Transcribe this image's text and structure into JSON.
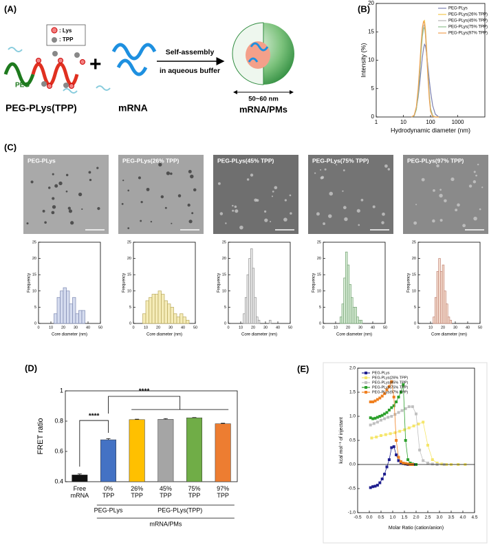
{
  "panels": [
    "(A)",
    "(B)",
    "(C)",
    "(D)",
    "(E)"
  ],
  "scheme": {
    "lys": ": Lys",
    "tpp": ": TPP",
    "peg": "PEG",
    "polymer": "PEG-PLys(TPP)",
    "plus": "+",
    "mrna": "mRNA",
    "step1": "Self-assembly",
    "step2": "in aqueous buffer",
    "size": "50~60 nm",
    "product": "mRNA/PMs"
  },
  "tem_images": [
    {
      "label": "PEG-PLys"
    },
    {
      "label": "PEG-PLys(26% TPP)"
    },
    {
      "label": "PEG-PLys(45% TPP)"
    },
    {
      "label": "PEG-PLys(75% TPP)"
    },
    {
      "label": "PEG-PLys(97% TPP)"
    }
  ],
  "chart_data": [
    {
      "type": "line",
      "xscale": "log",
      "xlabel": "Hydrodynamic diameter (nm)",
      "ylabel": "Intensity (%)",
      "xlim": [
        1,
        10000
      ],
      "xticks": [
        1,
        10,
        100,
        1000
      ],
      "ylim": [
        0,
        20
      ],
      "yticks": [
        0,
        5,
        10,
        15,
        20
      ],
      "legend": "upper right",
      "grid": false,
      "x": [
        20,
        25,
        30,
        35,
        40,
        45,
        50,
        55,
        60,
        65,
        70,
        80,
        90,
        100,
        120,
        150,
        200
      ],
      "series": [
        {
          "name": "PEG-PLys",
          "color": "#7a7fb0",
          "values": [
            0,
            0.3,
            1.5,
            3.5,
            6,
            8.5,
            10.5,
            12,
            12.8,
            12.5,
            11.5,
            9,
            6.5,
            4.5,
            2,
            0.5,
            0
          ]
        },
        {
          "name": "PEG-PLys(26% TPP)",
          "color": "#f2c94c",
          "values": [
            0,
            0.2,
            1.5,
            4.5,
            8.5,
            12.5,
            15.5,
            16.8,
            17,
            15.5,
            13,
            8,
            4,
            1.5,
            0.2,
            0,
            0
          ]
        },
        {
          "name": "PEG-PLys(45% TPP)",
          "color": "#b4b4b4",
          "values": [
            0,
            0.2,
            1.4,
            4.2,
            8,
            12,
            14.8,
            16,
            16.3,
            15,
            12.5,
            7.8,
            4,
            1.5,
            0.2,
            0,
            0
          ]
        },
        {
          "name": "PEG-PLys(75% TPP)",
          "color": "#8fbf8f",
          "values": [
            0,
            0.2,
            1.3,
            4,
            7.8,
            11.5,
            14.2,
            15.5,
            15.8,
            14.5,
            12,
            7.5,
            3.8,
            1.4,
            0.2,
            0,
            0
          ]
        },
        {
          "name": "PEG-PLys(97% TPP)",
          "color": "#f0a050",
          "values": [
            0,
            0.3,
            1.8,
            5,
            9,
            13,
            15.8,
            16.8,
            16.5,
            14.8,
            12,
            7,
            3.2,
            1,
            0.1,
            0,
            0
          ]
        }
      ]
    },
    {
      "type": "histogram",
      "xlabel": "Core diameter (nm)",
      "ylabel": "Frequency",
      "color": "#d5dcef",
      "edgecolor": "#7a86b0",
      "xlim": [
        0,
        50
      ],
      "xticks": [
        0,
        10,
        20,
        30,
        40,
        50
      ],
      "ylim": [
        0,
        25
      ],
      "yticks": [
        0,
        5,
        10,
        15,
        20,
        25
      ],
      "bins": [
        12.5,
        15,
        17.5,
        20,
        22.5,
        25,
        27.5,
        30,
        32.5,
        35,
        37.5,
        40
      ],
      "counts": [
        3,
        8,
        10,
        11,
        10,
        6,
        8,
        3,
        4,
        4,
        0
      ]
    },
    {
      "type": "histogram",
      "xlabel": "Core diameter (nm)",
      "ylabel": "Frequency",
      "color": "#f5ecb8",
      "edgecolor": "#b8a85a",
      "xlim": [
        0,
        50
      ],
      "xticks": [
        0,
        10,
        20,
        30,
        40,
        50
      ],
      "ylim": [
        0,
        25
      ],
      "yticks": [
        0,
        5,
        10,
        15,
        20,
        25
      ],
      "bins": [
        7.5,
        10,
        12.5,
        15,
        17.5,
        20,
        22.5,
        25,
        27.5,
        30,
        32.5,
        35,
        37.5,
        40,
        42.5,
        45
      ],
      "counts": [
        3,
        7,
        8,
        9,
        9,
        10,
        9,
        7,
        6,
        5,
        3,
        2,
        3,
        2,
        1
      ]
    },
    {
      "type": "histogram",
      "xlabel": "Core diameter (nm)",
      "ylabel": "Frequency",
      "color": "#ececec",
      "edgecolor": "#909090",
      "xlim": [
        0,
        50
      ],
      "xticks": [
        0,
        10,
        20,
        30,
        40,
        50
      ],
      "ylim": [
        0,
        25
      ],
      "yticks": [
        0,
        5,
        10,
        15,
        20,
        25
      ],
      "bins": [
        12,
        13.5,
        15,
        16.5,
        18,
        19.5,
        21,
        22.5,
        24,
        25.5,
        27,
        28.5,
        30,
        31.5,
        33,
        34.5
      ],
      "counts": [
        3,
        8,
        15,
        20,
        23,
        17,
        8,
        2,
        1,
        0,
        0,
        0,
        0,
        0,
        1
      ]
    },
    {
      "type": "histogram",
      "xlabel": "Core diameter (nm)",
      "ylabel": "Frequency",
      "color": "#d8ecd6",
      "edgecolor": "#70a070",
      "xlim": [
        0,
        50
      ],
      "xticks": [
        0,
        10,
        20,
        30,
        40,
        50
      ],
      "ylim": [
        0,
        25
      ],
      "yticks": [
        0,
        5,
        10,
        15,
        20,
        25
      ],
      "bins": [
        13.5,
        15,
        16.5,
        18,
        19.5,
        21,
        22.5,
        24,
        25.5,
        27,
        28.5,
        30,
        31.5
      ],
      "counts": [
        2,
        6,
        14,
        22,
        18,
        12,
        8,
        5,
        5,
        2,
        1,
        1
      ]
    },
    {
      "type": "histogram",
      "xlabel": "Core diameter (nm)",
      "ylabel": "Frequency",
      "color": "#f4dccf",
      "edgecolor": "#c08070",
      "xlim": [
        0,
        50
      ],
      "xticks": [
        0,
        10,
        20,
        30,
        40,
        50
      ],
      "ylim": [
        0,
        25
      ],
      "yticks": [
        0,
        5,
        10,
        15,
        20,
        25
      ],
      "bins": [
        12,
        13.5,
        15,
        16.5,
        18,
        19.5,
        21,
        22.5,
        24,
        25.5,
        27
      ],
      "counts": [
        2,
        8,
        16,
        20,
        16,
        18,
        10,
        6,
        2,
        1
      ]
    },
    {
      "type": "bar",
      "ylabel": "FRET ratio",
      "ylim": [
        0.4,
        1
      ],
      "yticks": [
        0.4,
        0.6,
        0.8,
        1
      ],
      "grid": false,
      "categories": [
        "Free mRNA",
        "0% TPP",
        "26% TPP",
        "45% TPP",
        "75% TPP",
        "97% TPP"
      ],
      "values": [
        0.445,
        0.677,
        0.81,
        0.812,
        0.822,
        0.783
      ],
      "errors": [
        0.006,
        0.007,
        0.003,
        0.005,
        0.002,
        0.003
      ],
      "colors": [
        "#111111",
        "#4472c4",
        "#ffc000",
        "#a5a5a5",
        "#70ad47",
        "#ed7d31"
      ],
      "annotations": [
        "****",
        "****"
      ],
      "groups": [
        "PEG-PLys",
        "PEG-PLys(TPP)",
        "mRNA/PMs"
      ]
    },
    {
      "type": "line",
      "marker": "square",
      "xlabel": "Molar Ratio (cation/anion)",
      "ylabel": "kcal mol⁻¹ of injectant",
      "legend": "upper left",
      "xlim": [
        -0.5,
        4.5
      ],
      "xticks": [
        -0.5,
        {
          "value": 0,
          "label": "0.0"
        },
        0.5,
        {
          "value": 1,
          "label": "1.0"
        },
        1.5,
        {
          "value": 2,
          "label": "2.0"
        },
        2.5,
        {
          "value": 3,
          "label": "3.0"
        },
        3.5,
        {
          "value": 4,
          "label": "4.0"
        },
        4.5
      ],
      "ylim": [
        -1,
        2
      ],
      "yticks": [
        {
          "value": -1,
          "label": "-1.0"
        },
        -0.5,
        {
          "value": 0,
          "label": "0.0"
        },
        0.5,
        {
          "value": 1,
          "label": "1.0"
        },
        1.5,
        {
          "value": 2,
          "label": "2.0"
        }
      ],
      "series": [
        {
          "name": "PEG-PLys",
          "color": "#1f1f8f",
          "x": [
            0.05,
            0.15,
            0.25,
            0.35,
            0.45,
            0.55,
            0.65,
            0.75,
            0.85,
            0.95,
            1.05,
            1.15,
            1.25,
            1.35,
            1.45,
            1.55,
            1.65,
            1.75,
            1.9
          ],
          "values": [
            -0.48,
            -0.46,
            -0.45,
            -0.43,
            -0.38,
            -0.3,
            -0.2,
            -0.05,
            0.1,
            0.35,
            0.37,
            0.2,
            0.08,
            0.04,
            0.02,
            0.01,
            0,
            0,
            0
          ]
        },
        {
          "name": "PEG-PLys(26% TPP)",
          "color": "#f5e66a",
          "x": [
            0.1,
            0.3,
            0.5,
            0.7,
            0.9,
            1.1,
            1.3,
            1.5,
            1.7,
            1.9,
            2.1,
            2.3,
            2.5,
            2.7,
            2.9,
            3.1,
            3.3,
            3.5,
            3.8,
            4.1
          ],
          "values": [
            0.55,
            0.57,
            0.6,
            0.62,
            0.64,
            0.66,
            0.69,
            0.72,
            0.76,
            0.8,
            0.84,
            0.88,
            0.4,
            0.1,
            0.03,
            0.01,
            0,
            0,
            0,
            0
          ]
        },
        {
          "name": "PEG-PLys(45% TPP)",
          "color": "#c0c0c0",
          "x": [
            0.05,
            0.2,
            0.35,
            0.5,
            0.65,
            0.8,
            0.95,
            1.1,
            1.25,
            1.4,
            1.55,
            1.7,
            1.85,
            2,
            2.15,
            2.3,
            2.5,
            2.7,
            2.9,
            3.2
          ],
          "values": [
            0.82,
            0.85,
            0.88,
            0.92,
            0.95,
            0.98,
            1,
            1.04,
            1.08,
            1.12,
            1.16,
            1.2,
            1.2,
            1.05,
            0.3,
            0.08,
            0.03,
            0.01,
            0,
            0
          ]
        },
        {
          "name": "PEG-PLys(75% TPP)",
          "color": "#2ca02c",
          "x": [
            0.05,
            0.15,
            0.25,
            0.35,
            0.45,
            0.55,
            0.65,
            0.75,
            0.85,
            0.95,
            1.05,
            1.15,
            1.25,
            1.35,
            1.45,
            1.55,
            1.65,
            1.75,
            1.85,
            2
          ],
          "values": [
            0.97,
            0.95,
            0.96,
            0.98,
            1,
            1.02,
            1.05,
            1.08,
            1.13,
            1.18,
            1.22,
            1.3,
            1.4,
            1.5,
            1.66,
            0.5,
            0.1,
            0.03,
            0.01,
            0
          ]
        },
        {
          "name": "PEG-PLys(97% TPP)",
          "color": "#f08020",
          "x": [
            0.05,
            0.15,
            0.25,
            0.35,
            0.45,
            0.55,
            0.65,
            0.75,
            0.85,
            0.95,
            1.05,
            1.15,
            1.25,
            1.35,
            1.45,
            1.55,
            1.65,
            1.75,
            1.85
          ],
          "values": [
            1.3,
            1.3,
            1.32,
            1.35,
            1.38,
            1.42,
            1.47,
            1.55,
            1.62,
            1.72,
            1.4,
            0.5,
            0.15,
            0.06,
            0.03,
            0.02,
            0.01,
            0,
            0
          ]
        }
      ]
    }
  ]
}
